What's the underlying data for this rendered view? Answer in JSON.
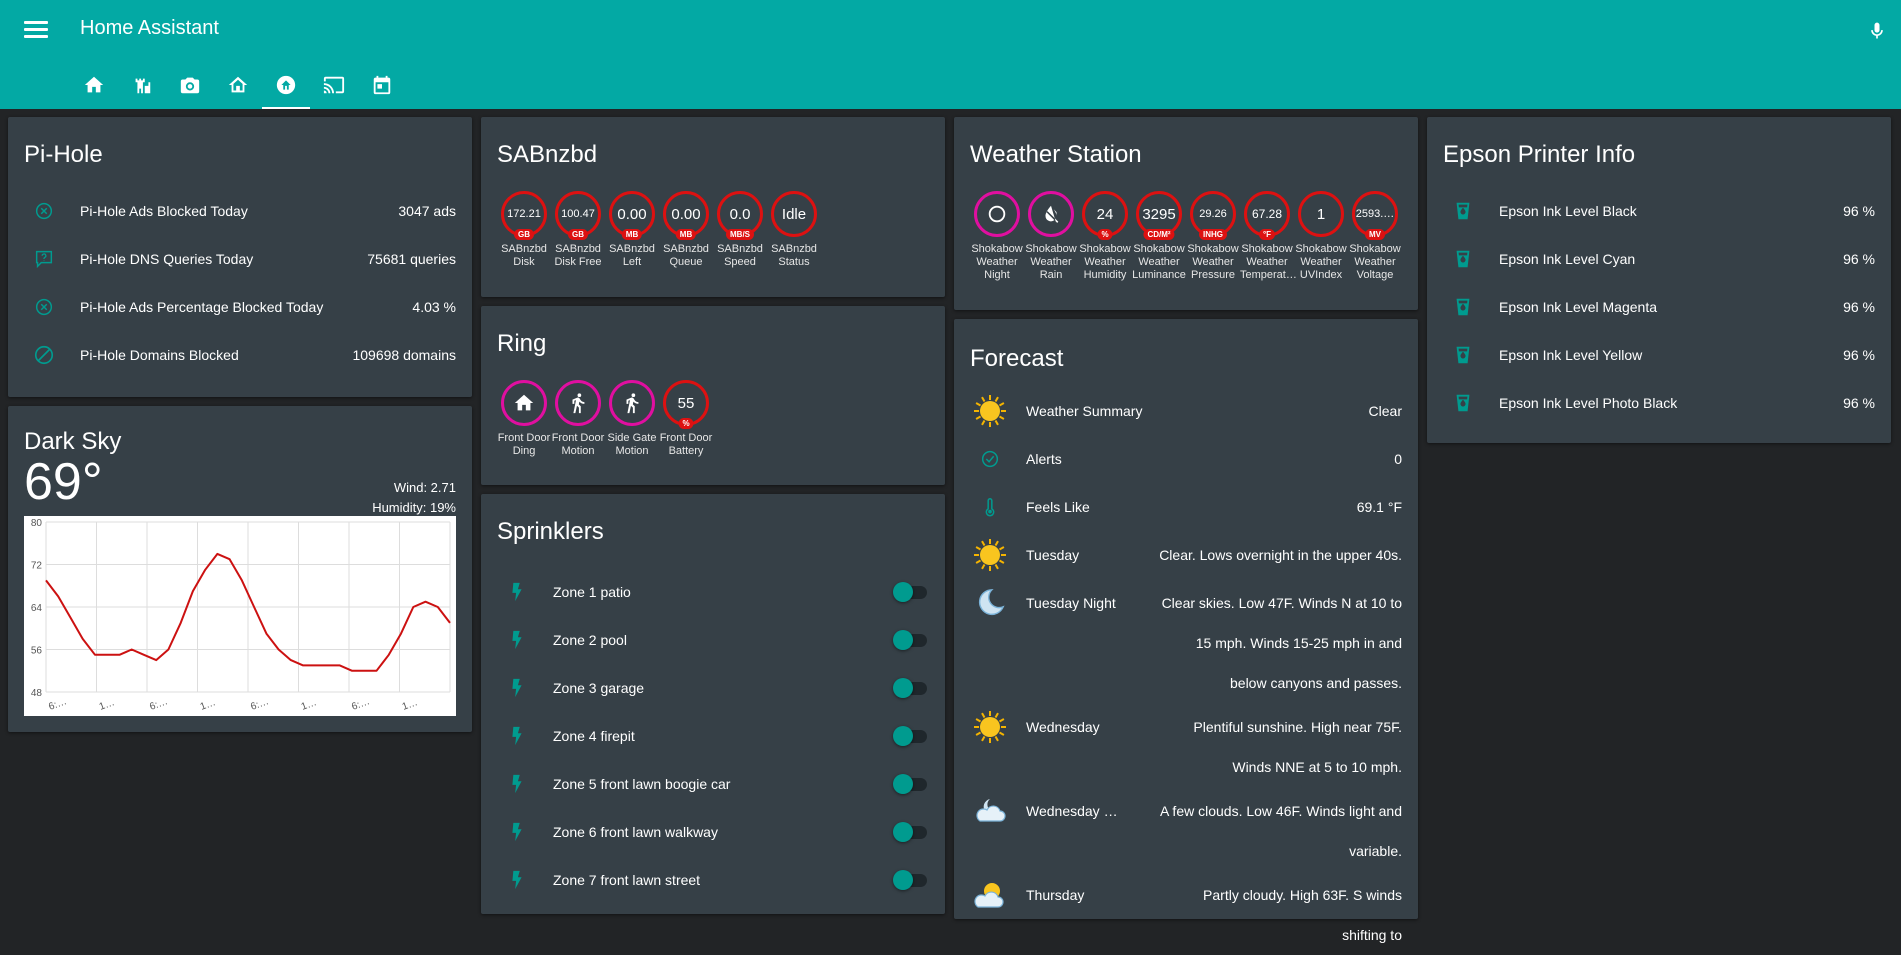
{
  "app": {
    "title": "Home Assistant"
  },
  "tabs": [
    "home-icon",
    "castle-icon",
    "camera-icon",
    "home-outline-icon",
    "home-circle-icon",
    "cast-icon",
    "calendar-icon"
  ],
  "pihole": {
    "title": "Pi-Hole",
    "rows": [
      {
        "icon": "close-circle-icon",
        "name": "Pi-Hole Ads Blocked Today",
        "value": "3047 ads"
      },
      {
        "icon": "comment-question-icon",
        "name": "Pi-Hole DNS Queries Today",
        "value": "75681 queries"
      },
      {
        "icon": "close-circle-icon",
        "name": "Pi-Hole Ads Percentage Blocked Today",
        "value": "4.03 %"
      },
      {
        "icon": "block-icon",
        "name": "Pi-Hole Domains Blocked",
        "value": "109698 domains"
      }
    ]
  },
  "darksky": {
    "title": "Dark Sky",
    "temp": "69°",
    "wind": "Wind: 2.71",
    "humidity": "Humidity: 19%"
  },
  "chart_data": {
    "type": "line",
    "ylim": [
      48,
      80
    ],
    "yticks": [
      "80",
      "72",
      "64",
      "56",
      "48"
    ],
    "xticks": [
      "6:…",
      "1…",
      "6:…",
      "1…",
      "6:…",
      "1…",
      "6:…",
      "1…"
    ],
    "series": [
      {
        "values": [
          69,
          66,
          62,
          58,
          55,
          55,
          55,
          56,
          55,
          54,
          56,
          61,
          67,
          71,
          74,
          73,
          69,
          64,
          59,
          56,
          54,
          53,
          53,
          53,
          53,
          52,
          52,
          52,
          55,
          59,
          64,
          65,
          64,
          61
        ]
      }
    ],
    "color": "#cc1111"
  },
  "sab": {
    "title": "SABnzbd",
    "badges": [
      {
        "value": "172.21",
        "unit": "GB",
        "label": "SABnzbd Disk"
      },
      {
        "value": "100.47",
        "unit": "GB",
        "label": "SABnzbd Disk Free"
      },
      {
        "value": "0.00",
        "unit": "MB",
        "label": "SABnzbd Left"
      },
      {
        "value": "0.00",
        "unit": "MB",
        "label": "SABnzbd Queue"
      },
      {
        "value": "0.0",
        "unit": "MB/S",
        "label": "SABnzbd Speed"
      },
      {
        "value": "Idle",
        "unit": "",
        "label": "SABnzbd Status"
      }
    ]
  },
  "ring": {
    "title": "Ring",
    "badges": [
      {
        "icon": "home-icon",
        "label": "Front Door Ding"
      },
      {
        "icon": "walk-icon",
        "label": "Front Door Motion"
      },
      {
        "icon": "walk-icon",
        "label": "Side Gate Motion"
      }
    ],
    "battery": {
      "value": "55",
      "unit": "%",
      "label": "Front Door Battery"
    }
  },
  "sprinklers": {
    "title": "Sprinklers",
    "zones": [
      "Zone 1 patio",
      "Zone 2 pool",
      "Zone 3 garage",
      "Zone 4 firepit",
      "Zone 5 front lawn boogie car",
      "Zone 6 front lawn walkway",
      "Zone 7 front lawn street"
    ]
  },
  "weather_station": {
    "title": "Weather Station",
    "badges": [
      {
        "icon": "night-icon",
        "label": "Shokabow Weather Night"
      },
      {
        "icon": "rain-off-icon",
        "label": "Shokabow Weather Rain"
      },
      {
        "value": "24",
        "unit": "%",
        "label": "Shokabow Weather Humidity"
      },
      {
        "value": "3295",
        "unit": "CD/M²",
        "label": "Shokabow Weather Luminance"
      },
      {
        "value": "29.26",
        "unit": "INHG",
        "label": "Shokabow Weather Pressure"
      },
      {
        "value": "67.28",
        "unit": "°F",
        "label": "Shokabow Weather Temperat…"
      },
      {
        "value": "1",
        "unit": "",
        "label": "Shokabow Weather UVIndex"
      },
      {
        "value": "2593.…",
        "unit": "MV",
        "label": "Shokabow Weather Voltage"
      }
    ]
  },
  "forecast": {
    "title": "Forecast",
    "rows": [
      {
        "icon": "sun-icon",
        "name": "Weather Summary",
        "value": "Clear"
      },
      {
        "icon": "check-circle-icon",
        "name": "Alerts",
        "value": "0"
      },
      {
        "icon": "thermometer-icon",
        "name": "Feels Like",
        "value": "69.1 °F"
      },
      {
        "icon": "sun-icon",
        "name": "Tuesday",
        "value": "Clear. Lows overnight in the upper 40s."
      },
      {
        "icon": "moon-icon",
        "name": "Tuesday Night",
        "value": "Clear skies. Low 47F. Winds N at 10 to 15 mph. Winds 15-25 mph in and below canyons and passes."
      },
      {
        "icon": "sun-icon",
        "name": "Wednesday",
        "value": "Plentiful sunshine. High near 75F. Winds NNE at 5 to 10 mph."
      },
      {
        "icon": "cloud-moon-icon",
        "name": "Wednesday …",
        "value": "A few clouds. Low 46F. Winds light and variable."
      },
      {
        "icon": "cloud-sun-icon",
        "name": "Thursday",
        "value": "Partly cloudy. High 63F. S winds shifting to"
      }
    ]
  },
  "epson": {
    "title": "Epson Printer Info",
    "rows": [
      {
        "icon": "cup-icon",
        "name": "Epson Ink Level Black",
        "value": "96 %"
      },
      {
        "icon": "cup-icon",
        "name": "Epson Ink Level Cyan",
        "value": "96 %"
      },
      {
        "icon": "cup-icon",
        "name": "Epson Ink Level Magenta",
        "value": "96 %"
      },
      {
        "icon": "cup-icon",
        "name": "Epson Ink Level Yellow",
        "value": "96 %"
      },
      {
        "icon": "cup-icon",
        "name": "Epson Ink Level Photo Black",
        "value": "96 %"
      }
    ]
  },
  "colors": {
    "header": "#03a9a4",
    "card": "#364047",
    "background": "#222426",
    "icon": "#009b8f",
    "badge_red": "#dd1111",
    "badge_pink": "#e00fa0"
  }
}
